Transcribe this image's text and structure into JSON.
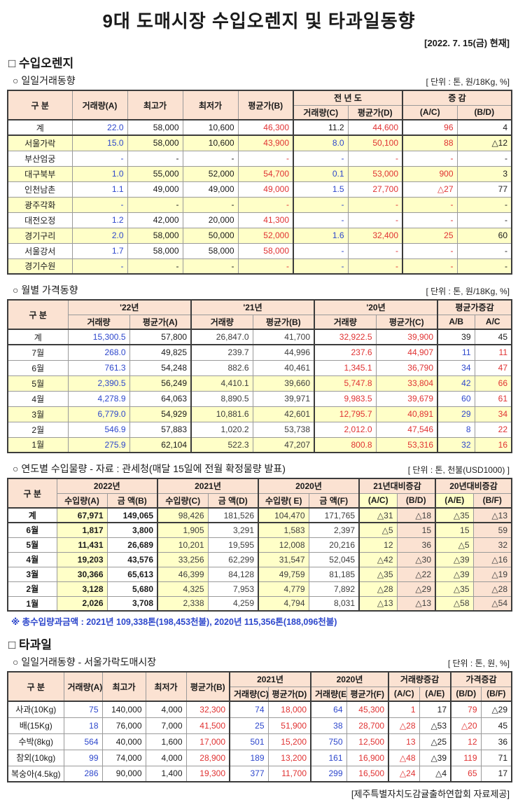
{
  "page": {
    "title": "9대 도매시장 수입오렌지 및 타과일동향",
    "date_note": "[2022. 7. 15(금) 현재]",
    "source_note": "[제주특별자치도감귤출하연합회 자료제공]"
  },
  "colors": {
    "blue": "#2d47cc",
    "red": "#e03232",
    "row_yellow": "#ffffc8",
    "header_peach": "#fbe2d2"
  },
  "orange_section": {
    "title": "□ 수입오렌지"
  },
  "fruit_section": {
    "title": "□ 타과일"
  },
  "daily": {
    "subtitle": "○ 일일거래동향",
    "unit": "[ 단위 : 톤, 원/18Kg, %]",
    "table": {
      "header": {
        "gubun": "구        분",
        "vol_a": "거래량(A)",
        "high": "최고가",
        "low": "최저가",
        "avg_b": "평균가(B)",
        "prev_year": "전 년 도",
        "vol_c": "거래량(C)",
        "avg_d": "평균가(D)",
        "change": "증    감",
        "ac": "(A/C)",
        "bd": "(B/D)"
      },
      "col_colors": [
        "blue",
        "black",
        "black",
        "red",
        "blue",
        "red",
        "red",
        "black"
      ],
      "rows": [
        {
          "label": "계",
          "bg": "white",
          "total": true,
          "overrides": {
            "4": "black"
          },
          "cells": [
            "22.0",
            "58,000",
            "10,600",
            "46,300",
            "11.2",
            "44,600",
            "96",
            "4"
          ]
        },
        {
          "label": "서울가락",
          "bg": "yellow",
          "cells": [
            "15.0",
            "58,000",
            "10,600",
            "43,900",
            "8.0",
            "50,100",
            "88",
            "△12"
          ]
        },
        {
          "label": "부산엄궁",
          "bg": "white",
          "cells": [
            "-",
            "-",
            "-",
            "-",
            "-",
            "-",
            "-",
            "-"
          ]
        },
        {
          "label": "대구북부",
          "bg": "yellow",
          "cells": [
            "1.0",
            "55,000",
            "52,000",
            "54,700",
            "0.1",
            "53,000",
            "900",
            "3"
          ]
        },
        {
          "label": "인천남촌",
          "bg": "white",
          "cells": [
            "1.1",
            "49,000",
            "49,000",
            "49,000",
            "1.5",
            "27,700",
            "△27",
            "77"
          ]
        },
        {
          "label": "광주각화",
          "bg": "yellow",
          "cells": [
            "-",
            "-",
            "-",
            "-",
            "-",
            "-",
            "-",
            "-"
          ]
        },
        {
          "label": "대전오정",
          "bg": "white",
          "cells": [
            "1.2",
            "42,000",
            "20,000",
            "41,300",
            "-",
            "-",
            "-",
            "-"
          ]
        },
        {
          "label": "경기구리",
          "bg": "yellow",
          "cells": [
            "2.0",
            "58,000",
            "50,000",
            "52,000",
            "1.6",
            "32,400",
            "25",
            "60"
          ]
        },
        {
          "label": "서울강서",
          "bg": "white",
          "cells": [
            "1.7",
            "58,000",
            "58,000",
            "58,000",
            "-",
            "-",
            "-",
            "-"
          ]
        },
        {
          "label": "경기수원",
          "bg": "yellow",
          "cells": [
            "-",
            "-",
            "-",
            "-",
            "-",
            "-",
            "-",
            "-"
          ]
        }
      ]
    }
  },
  "monthly": {
    "subtitle": "○ 월별 가격동향",
    "unit": "[ 단위 : 톤, 원/18Kg, %]",
    "table": {
      "header": {
        "gubun": "구      분",
        "y22": "'22년",
        "y21": "'21년",
        "y20": "'20년",
        "vol": "거래량",
        "avg_a": "평균가(A)",
        "avg_b": "평균가(B)",
        "avg_c": "평균가(C)",
        "change": "평균가증감",
        "ab": "A/B",
        "ac": "A/C"
      },
      "col_colors": [
        "blue",
        "black",
        "gray",
        "gray",
        "red",
        "red",
        "blue",
        "red"
      ],
      "rows": [
        {
          "label": "계",
          "bg": "white",
          "total": true,
          "overrides": {
            "6": "black",
            "7": "black"
          },
          "cells": [
            "15,300.5",
            "57,800",
            "26,847.0",
            "41,700",
            "32,922.5",
            "39,900",
            "39",
            "45"
          ]
        },
        {
          "label": "7월",
          "bg": "white",
          "cells": [
            "268.0",
            "49,825",
            "239.7",
            "44,996",
            "237.6",
            "44,907",
            "11",
            "11"
          ]
        },
        {
          "label": "6월",
          "bg": "white",
          "cells": [
            "761.3",
            "54,248",
            "882.6",
            "40,461",
            "1,345.1",
            "36,790",
            "34",
            "47"
          ]
        },
        {
          "label": "5월",
          "bg": "yellow",
          "cells": [
            "2,390.5",
            "56,249",
            "4,410.1",
            "39,660",
            "5,747.8",
            "33,804",
            "42",
            "66"
          ]
        },
        {
          "label": "4월",
          "bg": "white",
          "cells": [
            "4,278.9",
            "64,063",
            "8,890.5",
            "39,971",
            "9,983.5",
            "39,679",
            "60",
            "61"
          ]
        },
        {
          "label": "3월",
          "bg": "yellow",
          "cells": [
            "6,779.0",
            "54,929",
            "10,881.6",
            "42,601",
            "12,795.7",
            "40,891",
            "29",
            "34"
          ]
        },
        {
          "label": "2월",
          "bg": "white",
          "cells": [
            "546.9",
            "57,883",
            "1,020.2",
            "53,738",
            "2,012.0",
            "47,546",
            "8",
            "22"
          ]
        },
        {
          "label": "1월",
          "bg": "yellow",
          "cells": [
            "275.9",
            "62,104",
            "522.3",
            "47,207",
            "800.8",
            "53,316",
            "32",
            "16"
          ]
        }
      ]
    }
  },
  "yearly": {
    "subtitle": "○ 연도별 수입물량 - 자료 : 관세청(매달 15일에 전월 확정물량 발표)",
    "unit": "[ 단위 : 톤, 천불(USD1000) ]",
    "footnote": "※ 총수입량과금액 : 2021년 109,338톤(198,453천불),  2020년 115,356톤(188,096천불)",
    "table": {
      "header": {
        "gubun": "구 분",
        "y2022": "2022년",
        "y2021": "2021년",
        "y2020": "2020년",
        "vol_a": "수입량(A)",
        "amt_b": "금  액(B)",
        "vol_c": "수입량(C)",
        "amt_d": "금  액(D)",
        "vol_e": "수입량( E)",
        "amt_f": "금  액(F)",
        "chg21": "21년대비증감",
        "chg20": "20년대비증감",
        "ac": "(A/C)",
        "bd": "(B/D)",
        "ae": "(A/E)",
        "bf": "(B/F)"
      },
      "col_colors": [
        "black",
        "black",
        "gray",
        "gray",
        "gray",
        "gray",
        "gray",
        "gray",
        "gray",
        "gray"
      ],
      "col_bgs": [
        "y",
        "w",
        "y",
        "w",
        "y",
        "w",
        "y",
        "p",
        "y",
        "p"
      ],
      "rows": [
        {
          "label": "계",
          "total": true,
          "cells": [
            "67,971",
            "149,065",
            "98,426",
            "181,526",
            "104,470",
            "171,765",
            "△31",
            "△18",
            "△35",
            "△13"
          ]
        },
        {
          "label": "6월",
          "cells": [
            "1,817",
            "3,800",
            "1,905",
            "3,291",
            "1,583",
            "2,397",
            "△5",
            "15",
            "15",
            "59"
          ]
        },
        {
          "label": "5월",
          "cells": [
            "11,431",
            "26,689",
            "10,201",
            "19,595",
            "12,008",
            "20,216",
            "12",
            "36",
            "△5",
            "32"
          ]
        },
        {
          "label": "4월",
          "cells": [
            "19,203",
            "43,576",
            "33,256",
            "62,299",
            "31,547",
            "52,045",
            "△42",
            "△30",
            "△39",
            "△16"
          ]
        },
        {
          "label": "3월",
          "cells": [
            "30,366",
            "65,613",
            "46,399",
            "84,128",
            "49,759",
            "81,185",
            "△35",
            "△22",
            "△39",
            "△19"
          ]
        },
        {
          "label": "2월",
          "cells": [
            "3,128",
            "5,680",
            "4,325",
            "7,953",
            "4,779",
            "7,892",
            "△28",
            "△29",
            "△35",
            "△28"
          ]
        },
        {
          "label": "1월",
          "cells": [
            "2,026",
            "3,708",
            "2,338",
            "4,259",
            "4,794",
            "8,031",
            "△13",
            "△13",
            "△58",
            "△54"
          ]
        }
      ]
    }
  },
  "fruit_daily": {
    "subtitle": "○ 일일거래동향 - 서울가락도매시장",
    "unit": "[ 단위 : 톤, 원, %]",
    "table": {
      "header": {
        "gubun": "구  분",
        "vol_a": "거래량(A)",
        "high": "최고가",
        "low": "최저가",
        "avg_b": "평균가(B)",
        "y2021": "2021년",
        "y2020": "2020년",
        "vol_c": "거래량(C)",
        "avg_d": "평균가(D)",
        "vol_e": "거래량(E)",
        "avg_f": "평균가(F)",
        "vol_chg": "거래량증감",
        "price_chg": "가격증감",
        "ac": "(A/C)",
        "ae": "(A/E)",
        "bd": "(B/D)",
        "bf": "(B/F)"
      },
      "col_colors": [
        "blue",
        "black",
        "black",
        "red",
        "blue",
        "red",
        "blue",
        "red",
        "red",
        "black",
        "red",
        "black"
      ],
      "rows": [
        {
          "label": "사과(10Kg)",
          "cells": [
            "75",
            "140,000",
            "4,000",
            "32,300",
            "74",
            "18,000",
            "64",
            "45,300",
            "1",
            "17",
            "79",
            "△29"
          ]
        },
        {
          "label": "배(15Kg)",
          "cells": [
            "18",
            "76,000",
            "7,000",
            "41,500",
            "25",
            "51,900",
            "38",
            "28,700",
            "△28",
            "△53",
            "△20",
            "45"
          ]
        },
        {
          "label": "수박(8kg)",
          "cells": [
            "564",
            "40,000",
            "1,600",
            "17,000",
            "501",
            "15,200",
            "750",
            "12,500",
            "13",
            "△25",
            "12",
            "36"
          ]
        },
        {
          "label": "참외(10kg)",
          "cells": [
            "99",
            "74,000",
            "4,000",
            "28,900",
            "189",
            "13,200",
            "161",
            "16,900",
            "△48",
            "△39",
            "119",
            "71"
          ]
        },
        {
          "label": "복숭아(4.5kg)",
          "cells": [
            "286",
            "90,000",
            "1,400",
            "19,300",
            "377",
            "11,700",
            "299",
            "16,500",
            "△24",
            "△4",
            "65",
            "17"
          ]
        }
      ]
    }
  }
}
